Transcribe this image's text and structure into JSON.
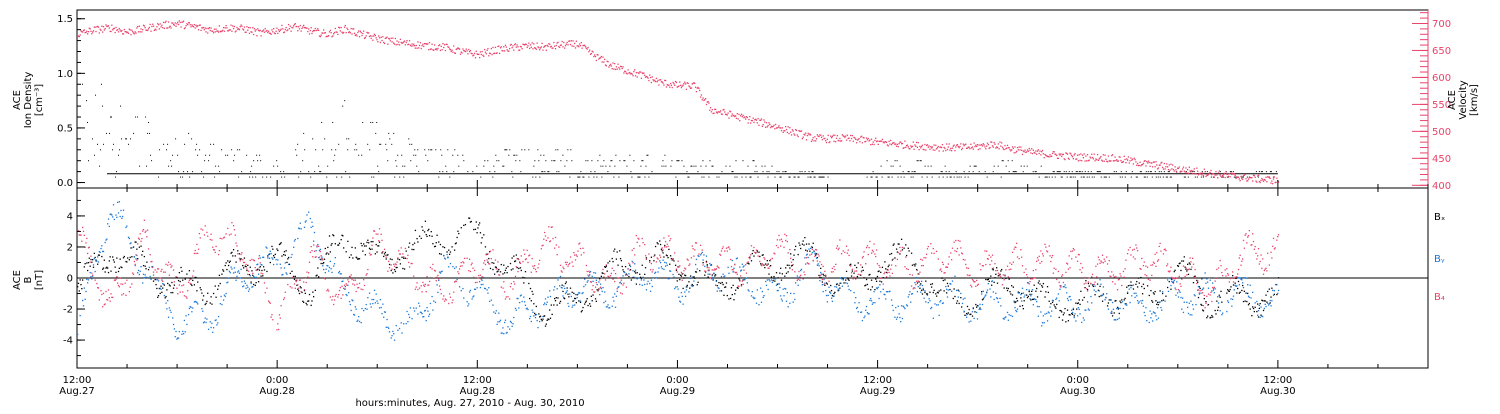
{
  "figure": {
    "xlabel": "hours:minutes, Aug. 27, 2010 - Aug. 30, 2010",
    "colors": {
      "axis": "#000000",
      "velocity": "#e8436b",
      "by": "#1a78d6",
      "bz": "#e8436b",
      "bx": "#000000"
    }
  },
  "chart_data": [
    {
      "type": "scatter",
      "panel": "top",
      "ylabel": [
        "ACE",
        "Ion Density",
        "[cm⁻³]"
      ],
      "ylim": [
        -0.05,
        1.58
      ],
      "yticks": [
        0.0,
        0.5,
        1.0,
        1.5
      ],
      "yticklabels": [
        "0.0",
        "0.5",
        "1.0",
        "1.5"
      ],
      "right_axis": {
        "ylabel": [
          "ACE",
          "Velocity",
          "[km/s]"
        ],
        "ylim": [
          395,
          725
        ],
        "yticks": [
          400,
          450,
          500,
          550,
          600,
          650,
          700
        ],
        "yticklabels": [
          "400",
          "450",
          "500",
          "550",
          "600",
          "650",
          "700"
        ]
      },
      "series": [
        {
          "kind": "density",
          "color": "#000000",
          "x_hours": [
            0.5,
            2,
            3.5,
            5,
            6.5,
            8,
            9.5,
            11,
            12.5,
            14,
            15.5,
            17,
            18.5,
            20,
            21.5,
            23,
            24.5,
            26,
            27.5,
            29,
            30.5,
            32,
            33.5,
            35,
            36.5,
            38,
            39.5,
            41,
            42.5,
            44,
            45.5,
            47,
            48.5,
            50,
            51.5,
            53,
            54.5,
            56,
            57.5,
            59,
            60.5,
            62,
            63.5,
            65,
            66.5,
            68,
            69.5,
            71
          ],
          "y": [
            1.0,
            0.9,
            0.75,
            0.55,
            0.45,
            0.35,
            0.3,
            0.28,
            0.27,
            0.5,
            0.75,
            0.7,
            0.45,
            0.4,
            0.3,
            0.28,
            0.25,
            0.3,
            0.3,
            0.3,
            0.27,
            0.25,
            0.25,
            0.25,
            0.22,
            0.2,
            0.2,
            0.18,
            0.1,
            0.1,
            0.0,
            0.0,
            0.18,
            0.2,
            0.15,
            0.12,
            0.15,
            0.2,
            0.15,
            0.12,
            0.1,
            0.1,
            0.08,
            0.08,
            0.08,
            0.1,
            0.08,
            0.08
          ]
        },
        {
          "kind": "velocity",
          "name": "",
          "color": "#e8436b",
          "x_hours": [
            0,
            1,
            2,
            3,
            4,
            5,
            6,
            7,
            8,
            9,
            10,
            11,
            12,
            13,
            14,
            15,
            16,
            17,
            18,
            19,
            20,
            21,
            22,
            23,
            24,
            25,
            26,
            27,
            28,
            29,
            30,
            31,
            32,
            33,
            34,
            35,
            36,
            37,
            38,
            39,
            40,
            41,
            42,
            43,
            44,
            45,
            46,
            47,
            48,
            49,
            50,
            51,
            52,
            53,
            54,
            55,
            56,
            57,
            58,
            59,
            60,
            61,
            62,
            63,
            64,
            65,
            66,
            67,
            68,
            69,
            70,
            71,
            72
          ],
          "y": [
            680,
            688,
            692,
            684,
            690,
            696,
            700,
            694,
            688,
            692,
            690,
            682,
            688,
            694,
            686,
            680,
            690,
            680,
            672,
            666,
            662,
            658,
            656,
            648,
            642,
            650,
            655,
            658,
            656,
            660,
            662,
            640,
            622,
            612,
            602,
            590,
            585,
            584,
            540,
            532,
            524,
            516,
            508,
            498,
            488,
            486,
            487,
            484,
            480,
            477,
            474,
            472,
            470,
            470,
            472,
            476,
            468,
            462,
            458,
            455,
            452,
            452,
            450,
            446,
            440,
            436,
            430,
            426,
            422,
            418,
            414,
            411,
            409
          ]
        }
      ]
    },
    {
      "type": "scatter",
      "panel": "bottom",
      "ylabel": [
        "ACE",
        "B",
        "[nT]"
      ],
      "ylim": [
        -5.8,
        5.8
      ],
      "yticks": [
        -4,
        -2,
        0,
        2,
        4
      ],
      "yticklabels": [
        "-4",
        "-2",
        "0",
        "2",
        "4"
      ],
      "zero_line": true,
      "legend": [
        "Bₓ",
        "Bᵧ",
        "B₄"
      ],
      "series": [
        {
          "name": "Bₓ",
          "color": "#000000",
          "x_hours": [
            0,
            2,
            4,
            6,
            8,
            10,
            12,
            14,
            16,
            18,
            20,
            22,
            24,
            26,
            28,
            30,
            32,
            34,
            36,
            38,
            40,
            42,
            44,
            46,
            48,
            50,
            52,
            54,
            56,
            58,
            60,
            62,
            64,
            66,
            68,
            70,
            72
          ],
          "y": [
            -1.0,
            1.8,
            0.6,
            -0.6,
            -0.4,
            0.8,
            1.2,
            -0.8,
            3.0,
            1.0,
            2.0,
            2.6,
            2.8,
            0.5,
            -2.0,
            -1.5,
            0.4,
            1.2,
            0.8,
            -0.5,
            0.2,
            1.0,
            1.5,
            -0.8,
            0.8,
            1.3,
            -1.5,
            -1.2,
            -0.2,
            -1.8,
            -1.5,
            -1.1,
            -1.2,
            0.4,
            -1.5,
            -1.1,
            -1.4
          ]
        },
        {
          "name": "Bᵧ",
          "color": "#1a78d6",
          "x_hours": [
            0,
            2,
            4,
            6,
            8,
            10,
            12,
            14,
            16,
            18,
            20,
            22,
            24,
            26,
            28,
            30,
            32,
            34,
            36,
            38,
            40,
            42,
            44,
            46,
            48,
            50,
            52,
            54,
            56,
            58,
            60,
            62,
            64,
            66,
            68,
            70,
            72
          ],
          "y": [
            -3.6,
            4.6,
            0.8,
            -3.0,
            -2.4,
            0.5,
            1.0,
            3.4,
            -1.0,
            -2.2,
            -3.2,
            0.5,
            -0.8,
            -2.8,
            -1.5,
            -0.6,
            -1.0,
            0.5,
            -0.6,
            0.6,
            0.0,
            -1.2,
            1.0,
            -1.4,
            -1.6,
            -1.4,
            -1.2,
            -1.6,
            -1.5,
            -1.8,
            -1.6,
            -1.4,
            -1.9,
            -1.2,
            -1.0,
            -1.2,
            -1.5
          ]
        },
        {
          "name": "B₄",
          "color": "#e8436b",
          "x_hours": [
            0,
            2,
            4,
            6,
            8,
            10,
            12,
            14,
            16,
            18,
            20,
            22,
            24,
            26,
            28,
            30,
            32,
            34,
            36,
            38,
            40,
            42,
            44,
            46,
            48,
            50,
            52,
            54,
            56,
            58,
            60,
            62,
            64,
            66,
            68,
            70,
            72
          ],
          "y": [
            2.6,
            -1.8,
            2.4,
            -1.0,
            3.0,
            1.8,
            -2.4,
            1.4,
            -1.6,
            2.2,
            0.4,
            -1.0,
            1.2,
            -0.2,
            2.2,
            1.0,
            -0.6,
            2.0,
            1.2,
            1.0,
            0.8,
            1.8,
            0.6,
            1.2,
            1.0,
            0.6,
            1.6,
            0.4,
            0.8,
            1.0,
            0.6,
            0.4,
            1.2,
            0.6,
            -1.0,
            1.8,
            1.6
          ]
        }
      ]
    }
  ],
  "xaxis": {
    "start_label": "Aug.27 12:00",
    "xlim_hours": [
      0,
      81
    ],
    "major_ticks_hours": [
      0,
      12,
      24,
      36,
      48,
      60,
      72
    ],
    "tick_labels": [
      {
        "time": "12:00",
        "date": "Aug.27"
      },
      {
        "time": "0:00",
        "date": "Aug.28"
      },
      {
        "time": "12:00",
        "date": "Aug.28"
      },
      {
        "time": "0:00",
        "date": "Aug.29"
      },
      {
        "time": "12:00",
        "date": "Aug.29"
      },
      {
        "time": "0:00",
        "date": "Aug.30"
      },
      {
        "time": "12:00",
        "date": "Aug.30"
      }
    ]
  }
}
